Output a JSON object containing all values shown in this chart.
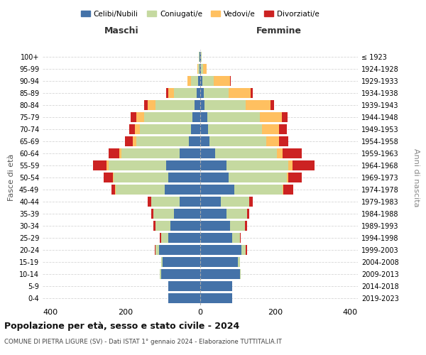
{
  "age_groups": [
    "0-4",
    "5-9",
    "10-14",
    "15-19",
    "20-24",
    "25-29",
    "30-34",
    "35-39",
    "40-44",
    "45-49",
    "50-54",
    "55-59",
    "60-64",
    "65-69",
    "70-74",
    "75-79",
    "80-84",
    "85-89",
    "90-94",
    "95-99",
    "100+"
  ],
  "birth_years": [
    "2019-2023",
    "2014-2018",
    "2009-2013",
    "2004-2008",
    "1999-2003",
    "1994-1998",
    "1989-1993",
    "1984-1988",
    "1979-1983",
    "1974-1978",
    "1969-1973",
    "1964-1968",
    "1959-1963",
    "1954-1958",
    "1949-1953",
    "1944-1948",
    "1939-1943",
    "1934-1938",
    "1929-1933",
    "1924-1928",
    "≤ 1923"
  ],
  "males": {
    "celibi": [
      85,
      85,
      105,
      100,
      110,
      85,
      80,
      70,
      55,
      95,
      85,
      90,
      55,
      30,
      25,
      20,
      15,
      10,
      5,
      2,
      2
    ],
    "coniugati": [
      0,
      0,
      2,
      5,
      10,
      20,
      40,
      55,
      75,
      130,
      145,
      155,
      155,
      140,
      135,
      130,
      105,
      60,
      20,
      3,
      1
    ],
    "vedovi": [
      0,
      0,
      0,
      0,
      0,
      0,
      0,
      0,
      0,
      2,
      3,
      5,
      5,
      10,
      15,
      20,
      20,
      15,
      10,
      2,
      0
    ],
    "divorziati": [
      0,
      0,
      0,
      0,
      2,
      2,
      5,
      5,
      10,
      10,
      25,
      35,
      30,
      20,
      15,
      15,
      10,
      5,
      0,
      0,
      0
    ]
  },
  "females": {
    "nubili": [
      85,
      85,
      105,
      100,
      110,
      85,
      80,
      70,
      55,
      90,
      75,
      70,
      40,
      25,
      20,
      18,
      12,
      10,
      5,
      2,
      2
    ],
    "coniugate": [
      0,
      0,
      2,
      5,
      12,
      20,
      40,
      55,
      75,
      130,
      155,
      165,
      165,
      150,
      145,
      140,
      110,
      65,
      30,
      5,
      1
    ],
    "vedove": [
      0,
      0,
      0,
      0,
      0,
      0,
      0,
      0,
      0,
      2,
      5,
      10,
      15,
      35,
      45,
      60,
      65,
      60,
      45,
      10,
      1
    ],
    "divorziate": [
      0,
      0,
      0,
      0,
      2,
      2,
      5,
      5,
      10,
      25,
      35,
      60,
      50,
      25,
      20,
      15,
      10,
      5,
      2,
      0,
      0
    ]
  },
  "colors": {
    "celibi": "#4472a8",
    "coniugati": "#c5d9a0",
    "vedovi": "#ffc060",
    "divorziati": "#cc2222"
  },
  "xlim": 420,
  "title": "Popolazione per età, sesso e stato civile - 2024",
  "subtitle": "COMUNE DI PIETRA LIGURE (SV) - Dati ISTAT 1° gennaio 2024 - Elaborazione TUTTITALIA.IT",
  "ylabel_left": "Fasce di età",
  "ylabel_right": "Anni di nascita",
  "xlabel_maschi": "Maschi",
  "xlabel_femmine": "Femmine",
  "legend_labels": [
    "Celibi/Nubili",
    "Coniugati/e",
    "Vedovi/e",
    "Divorziati/e"
  ]
}
